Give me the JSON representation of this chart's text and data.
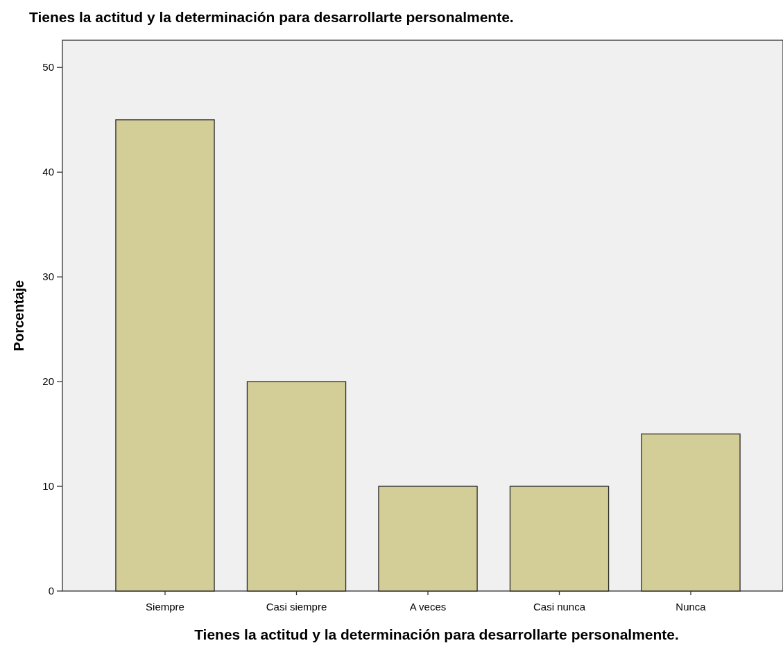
{
  "chart_data": {
    "type": "bar",
    "title": "Tienes la actitud y la determinación para desarrollarte personalmente.",
    "xlabel": "Tienes la actitud y la determinación para desarrollarte personalmente.",
    "ylabel": "Porcentaje",
    "categories": [
      "Siempre",
      "Casi siempre",
      "A veces",
      "Casi nunca",
      "Nunca"
    ],
    "values": [
      45,
      20,
      10,
      10,
      15
    ],
    "color": "#d3ce97",
    "ylim": [
      0,
      52.6
    ],
    "yticks": [
      0,
      10,
      20,
      30,
      40,
      50
    ],
    "grid": false
  }
}
